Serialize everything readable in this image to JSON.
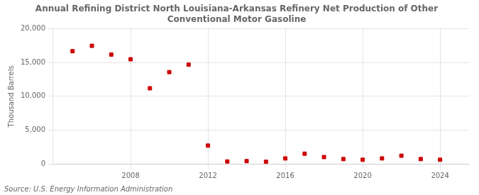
{
  "chart_data": {
    "type": "scatter",
    "title": "Annual Refining District North Louisiana-Arkansas Refinery Net Production of Other\nConventional Motor Gasoline",
    "ylabel": "Thousand Barrels",
    "annotations": [
      "Source: U.S. Energy Information Administration"
    ],
    "x": [
      2005,
      2006,
      2007,
      2008,
      2009,
      2010,
      2011,
      2012,
      2013,
      2014,
      2015,
      2016,
      2017,
      2018,
      2019,
      2020,
      2021,
      2022,
      2023,
      2024
    ],
    "values": [
      16700,
      17500,
      16200,
      15500,
      11200,
      13600,
      14700,
      2700,
      350,
      400,
      300,
      800,
      1500,
      1000,
      700,
      600,
      800,
      1200,
      700,
      600
    ],
    "color": "#cc0000",
    "marker": "square",
    "xlim": [
      2004,
      2025.5
    ],
    "xticks": [
      2008,
      2012,
      2016,
      2020,
      2024
    ],
    "ylim": [
      0,
      20000
    ],
    "yticks": [
      0,
      {
        "value": 5000,
        "label": "5,000"
      },
      {
        "value": 10000,
        "label": "10,000"
      },
      {
        "value": 15000,
        "label": "15,000"
      },
      {
        "value": 20000,
        "label": "20,000"
      }
    ],
    "grid": true
  }
}
